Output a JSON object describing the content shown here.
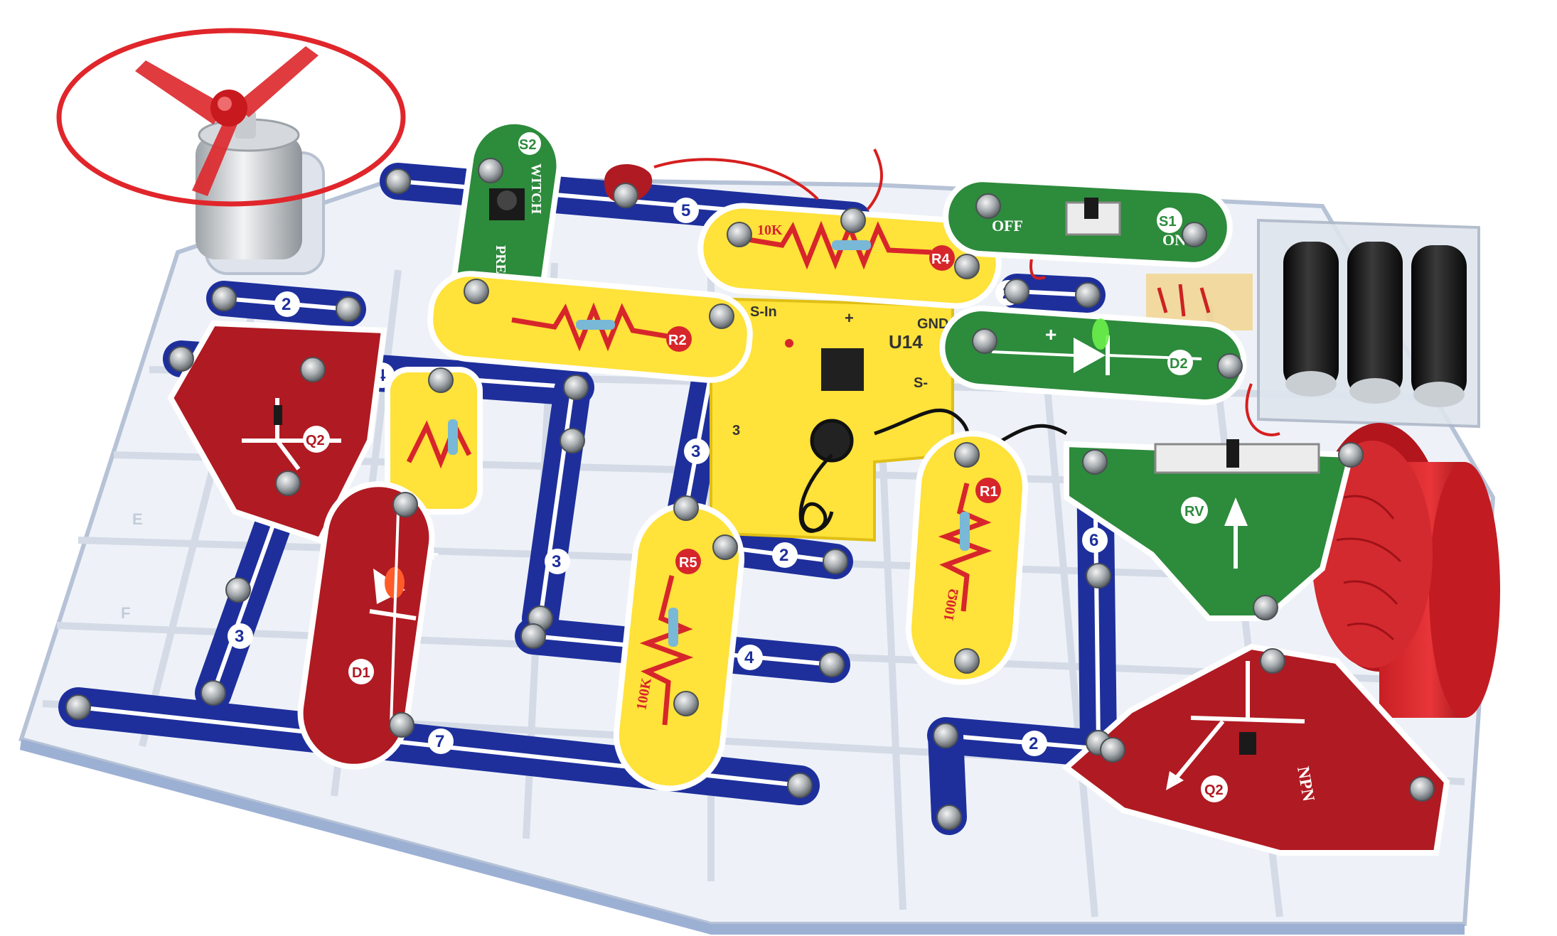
{
  "colors": {
    "board": "#e9eef5",
    "board_edge": "#c8d2e2",
    "wire_blue": "#1e2f9c",
    "wire_stripe": "#ffffff",
    "green_part": "#2d8b3c",
    "yellow_part": "#ffe23a",
    "red_part": "#b01a22",
    "snap_metal": "#9aa1a6",
    "fan_red": "#e0262b",
    "battery_black": "#181818"
  },
  "parts": {
    "s2": {
      "id": "S2",
      "line1": "WITCH",
      "line2": "PRESS"
    },
    "s1": {
      "id": "S1",
      "off": "OFF",
      "on": "ON"
    },
    "r4": {
      "id": "R4",
      "value": "10K"
    },
    "r2": {
      "id": "R2"
    },
    "u14": {
      "id": "U14",
      "pin_sin": "S-In",
      "pin_gnd": "GND",
      "pin_plus": "+",
      "pin_s": "S-",
      "pin_3": "3"
    },
    "d2": {
      "id": "D2",
      "plus": "+"
    },
    "q2_left": {
      "id": "Q2"
    },
    "q2_right": {
      "id": "Q2",
      "type": "NPN"
    },
    "d1": {
      "id": "D1",
      "plus": "+"
    },
    "r5": {
      "id": "R5",
      "value": "100K"
    },
    "r1": {
      "id": "R1",
      "value": "100Ω"
    },
    "rv": {
      "id": "RV"
    }
  },
  "wires": {
    "w5": "5",
    "w2a": "2",
    "w2b": "2",
    "w4a": "4",
    "w3a": "3",
    "w3b": "3",
    "w3c": "3",
    "w2c": "2",
    "w4b": "4",
    "w6": "6",
    "w7": "7",
    "w2d": "2"
  },
  "board_marks": {
    "col_e": "E",
    "col_f": "F"
  },
  "icons": [
    "fan-icon",
    "motor-icon",
    "battery-icon",
    "speaker-icon"
  ]
}
